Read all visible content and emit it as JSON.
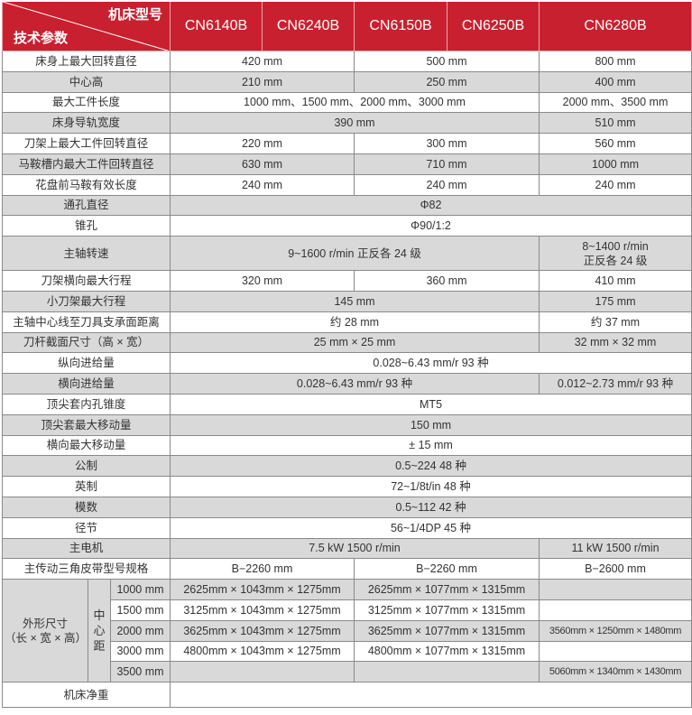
{
  "header": {
    "corner_top": "机床型号",
    "corner_bottom": "技术参数",
    "models": [
      "CN6140B",
      "CN6240B",
      "CN6150B",
      "CN6250B",
      "CN6280B"
    ],
    "accent_color": "#c8202f"
  },
  "rows": [
    {
      "label": "床身上最大回转直径",
      "shade": "w",
      "cells": [
        {
          "t": "420 mm",
          "s": 2
        },
        {
          "t": "500 mm",
          "s": 2
        },
        {
          "t": "800 mm",
          "s": 1
        }
      ]
    },
    {
      "label": "中心高",
      "shade": "g",
      "cells": [
        {
          "t": "210 mm",
          "s": 2
        },
        {
          "t": "250 mm",
          "s": 2
        },
        {
          "t": "400 mm",
          "s": 1
        }
      ]
    },
    {
      "label": "最大工件长度",
      "shade": "w",
      "cells": [
        {
          "t": "1000 mm、1500 mm、2000 mm、3000 mm",
          "s": 4
        },
        {
          "t": "2000 mm、3500 mm",
          "s": 1
        }
      ]
    },
    {
      "label": "床身导轨宽度",
      "shade": "g",
      "cells": [
        {
          "t": "390 mm",
          "s": 4
        },
        {
          "t": "510 mm",
          "s": 1
        }
      ]
    },
    {
      "label": "刀架上最大工件回转直径",
      "shade": "w",
      "cells": [
        {
          "t": "220 mm",
          "s": 2
        },
        {
          "t": "300 mm",
          "s": 2
        },
        {
          "t": "560 mm",
          "s": 1
        }
      ]
    },
    {
      "label": "马鞍槽内最大工件回转直径",
      "shade": "g",
      "cells": [
        {
          "t": "630 mm",
          "s": 2
        },
        {
          "t": "710 mm",
          "s": 2
        },
        {
          "t": "1000 mm",
          "s": 1
        }
      ]
    },
    {
      "label": "花盘前马鞍有效长度",
      "shade": "w",
      "cells": [
        {
          "t": "240 mm",
          "s": 2
        },
        {
          "t": "240 mm",
          "s": 2
        },
        {
          "t": "240 mm",
          "s": 1
        }
      ]
    },
    {
      "label": "通孔直径",
      "shade": "g",
      "cells": [
        {
          "t": "Φ82",
          "s": 5
        }
      ]
    },
    {
      "label": "锥孔",
      "shade": "w",
      "cells": [
        {
          "t": "Φ90/1:2",
          "s": 5
        }
      ]
    },
    {
      "label": "主轴转速",
      "shade": "g",
      "tall": true,
      "cells": [
        {
          "t": "9~1600 r/min  正反各 24 级",
          "s": 4
        },
        {
          "t": "8~1400 r/min\n正反各 24 级",
          "s": 1
        }
      ]
    },
    {
      "label": "刀架横向最大行程",
      "shade": "w",
      "cells": [
        {
          "t": "320 mm",
          "s": 2
        },
        {
          "t": "360 mm",
          "s": 2
        },
        {
          "t": "410 mm",
          "s": 1
        }
      ]
    },
    {
      "label": "小刀架最大行程",
      "shade": "g",
      "cells": [
        {
          "t": "145 mm",
          "s": 4
        },
        {
          "t": "175 mm",
          "s": 1
        }
      ]
    },
    {
      "label": "主轴中心线至刀具支承面距离",
      "shade": "w",
      "cells": [
        {
          "t": "约 28 mm",
          "s": 4
        },
        {
          "t": "约 37 mm",
          "s": 1
        }
      ]
    },
    {
      "label": "刀杆截面尺寸（高 × 宽）",
      "shade": "g",
      "cells": [
        {
          "t": "25 mm × 25 mm",
          "s": 4
        },
        {
          "t": "32 mm × 32 mm",
          "s": 1
        }
      ]
    },
    {
      "label": "纵向进给量",
      "shade": "w",
      "cells": [
        {
          "t": "0.028~6.43 mm/r 93 种",
          "s": 5
        }
      ]
    },
    {
      "label": "横向进给量",
      "shade": "g",
      "cells": [
        {
          "t": "0.028~6.43 mm/r  93 种",
          "s": 4
        },
        {
          "t": "0.012~2.73 mm/r  93 种",
          "s": 1
        }
      ]
    },
    {
      "label": "顶尖套内孔锥度",
      "shade": "w",
      "cells": [
        {
          "t": "MT5",
          "s": 5
        }
      ]
    },
    {
      "label": "顶尖套最大移动量",
      "shade": "g",
      "cells": [
        {
          "t": "150 mm",
          "s": 5
        }
      ]
    },
    {
      "label": "横向最大移动量",
      "shade": "w",
      "cells": [
        {
          "t": "± 15 mm",
          "s": 5
        }
      ]
    },
    {
      "label": "公制",
      "shade": "g",
      "cells": [
        {
          "t": "0.5~224 48 种",
          "s": 5
        }
      ]
    },
    {
      "label": "英制",
      "shade": "w",
      "cells": [
        {
          "t": "72~1/8t/in 48 种",
          "s": 5
        }
      ]
    },
    {
      "label": "模数",
      "shade": "g",
      "cells": [
        {
          "t": "0.5~112 42 种",
          "s": 5
        }
      ]
    },
    {
      "label": "径节",
      "shade": "w",
      "cells": [
        {
          "t": "56~1/4DP 45 种",
          "s": 5
        }
      ]
    },
    {
      "label": "主电机",
      "shade": "g",
      "cells": [
        {
          "t": "7.5 kW  1500 r/min",
          "s": 4
        },
        {
          "t": "11 kW  1500 r/min",
          "s": 1
        }
      ]
    },
    {
      "label": "主传动三角皮带型号规格",
      "shade": "w",
      "cells": [
        {
          "t": "B−2260 mm",
          "s": 2
        },
        {
          "t": "B−2260 mm",
          "s": 2
        },
        {
          "t": "B−2600 mm",
          "s": 1
        }
      ]
    }
  ],
  "dimensions": {
    "label": "外形尺寸\n（长 × 宽 × 高）",
    "sub_label": "中心距",
    "rows": [
      {
        "center": "1000 mm",
        "shade": "g",
        "a": "2625mm × 1043mm × 1275mm",
        "b": "2625mm × 1077mm × 1315mm",
        "c": ""
      },
      {
        "center": "1500 mm",
        "shade": "w",
        "a": "3125mm × 1043mm × 1275mm",
        "b": "3125mm × 1077mm × 1315mm",
        "c": ""
      },
      {
        "center": "2000 mm",
        "shade": "g",
        "a": "3625mm × 1043mm × 1275mm",
        "b": "3625mm × 1077mm × 1315mm",
        "c": "3560mm × 1250mm × 1480mm"
      },
      {
        "center": "3000 mm",
        "shade": "w",
        "a": "4800mm × 1043mm × 1275mm",
        "b": "4800mm × 1077mm × 1315mm",
        "c": ""
      },
      {
        "center": "3500 mm",
        "shade": "g",
        "a": "",
        "b": "",
        "c": "5060mm × 1340mm × 1430mm"
      }
    ]
  },
  "weight": {
    "label": "机床净重",
    "value": ""
  }
}
